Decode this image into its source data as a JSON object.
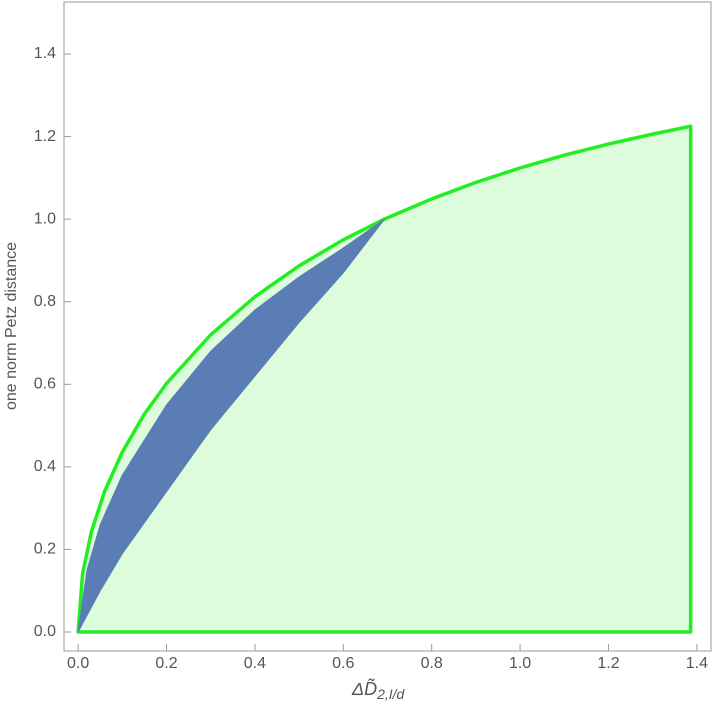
{
  "chart_data": {
    "type": "area",
    "x_label": "ΔD̃",
    "x_label_sub": "2,I/d",
    "y_label": "one norm Petz distance",
    "xlim": [
      -0.032,
      1.432
    ],
    "ylim": [
      -0.046,
      1.526
    ],
    "xticks": [
      {
        "value": 0,
        "label": "0.0"
      },
      0.2,
      0.4,
      0.6,
      0.8,
      {
        "value": 1,
        "label": "1.0"
      },
      1.2,
      1.4
    ],
    "yticks": [
      {
        "value": 0,
        "label": "0.0"
      },
      0.2,
      0.4,
      0.6,
      0.8,
      {
        "value": 1,
        "label": "1.0"
      },
      1.2,
      1.4
    ],
    "region": {
      "color": "#22ee22",
      "fill": "#dcfcdc",
      "x": [
        0,
        0.01,
        0.03,
        0.06,
        0.1,
        0.15,
        0.2,
        0.3,
        0.4,
        0.5,
        0.6,
        0.693,
        0.8,
        0.9,
        1.0,
        1.1,
        1.2,
        1.3,
        1.386,
        1.386,
        0,
        0
      ],
      "values": [
        0,
        0.141,
        0.243,
        0.341,
        0.436,
        0.528,
        0.602,
        0.72,
        0.812,
        0.887,
        0.95,
        1.0,
        1.049,
        1.089,
        1.124,
        1.155,
        1.182,
        1.206,
        1.225,
        0,
        0,
        0
      ]
    },
    "band": {
      "color": "#5b7db5",
      "x": [
        0,
        0.02,
        0.05,
        0.1,
        0.2,
        0.3,
        0.4,
        0.5,
        0.6,
        0.693
      ],
      "upper": [
        0,
        0.15,
        0.26,
        0.38,
        0.55,
        0.68,
        0.78,
        0.86,
        0.93,
        1.0
      ],
      "lower": [
        0,
        0.04,
        0.1,
        0.19,
        0.34,
        0.49,
        0.62,
        0.75,
        0.87,
        1.0
      ]
    }
  }
}
